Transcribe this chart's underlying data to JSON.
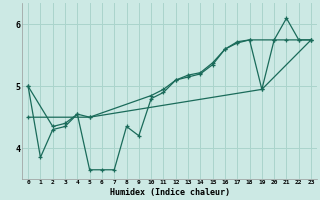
{
  "xlabel": "Humidex (Indice chaleur)",
  "bg_color": "#cce9e4",
  "line_color": "#1a6b5a",
  "grid_color": "#aad4cc",
  "xlim": [
    -0.5,
    23.5
  ],
  "ylim": [
    3.5,
    6.35
  ],
  "xticks": [
    0,
    1,
    2,
    3,
    4,
    5,
    6,
    7,
    8,
    9,
    10,
    11,
    12,
    13,
    14,
    15,
    16,
    17,
    18,
    19,
    20,
    21,
    22,
    23
  ],
  "yticks": [
    4,
    5,
    6
  ],
  "line1_x": [
    0,
    1,
    2,
    3,
    4,
    5,
    6,
    7,
    8,
    9,
    10,
    11,
    12,
    13,
    14,
    15,
    16,
    17,
    18,
    19,
    20,
    21,
    22,
    23
  ],
  "line1_y": [
    5.0,
    3.85,
    4.3,
    4.35,
    4.55,
    3.65,
    3.65,
    3.65,
    4.35,
    4.2,
    4.8,
    4.9,
    5.1,
    5.15,
    5.2,
    5.35,
    5.6,
    5.7,
    5.75,
    4.95,
    5.75,
    6.1,
    5.75,
    5.75
  ],
  "line2_x": [
    0,
    2,
    3,
    4,
    5,
    10,
    11,
    12,
    13,
    14,
    15,
    16,
    17,
    18,
    20,
    21,
    22,
    23
  ],
  "line2_y": [
    5.0,
    4.35,
    4.4,
    4.55,
    4.5,
    4.85,
    4.95,
    5.1,
    5.18,
    5.22,
    5.38,
    5.6,
    5.72,
    5.75,
    5.75,
    5.75,
    5.75,
    5.75
  ],
  "line3_x": [
    0,
    5,
    19,
    23
  ],
  "line3_y": [
    4.5,
    4.5,
    4.95,
    5.75
  ]
}
